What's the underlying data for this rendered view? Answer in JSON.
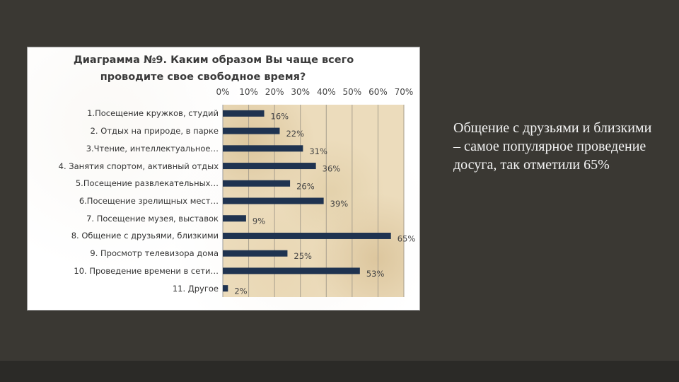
{
  "side_text": "Общение с друзьями и близкими – самое популярное проведение досуга, так отметили 65%",
  "chart_data": {
    "type": "bar",
    "orientation": "horizontal",
    "title_line1": "Диаграмма №9. Каким образом Вы чаще всего",
    "title_line2": "проводите свое свободное время?",
    "categories": [
      "1.Посещение кружков, студий",
      "2. Отдых на природе, в парке",
      "3.Чтение, интеллектуальное…",
      "4. Занятия спортом, активный отдых",
      "5.Посещение развлекательных…",
      "6.Посещение зрелищных мест…",
      "7. Посещение музея, выставок",
      "8. Общение с друзьями, близкими",
      "9. Просмотр телевизора дома",
      "10. Проведение времени в сети…",
      "11. Другое"
    ],
    "values": [
      16,
      22,
      31,
      36,
      26,
      39,
      9,
      65,
      25,
      53,
      2
    ],
    "value_labels": [
      "16%",
      "22%",
      "31%",
      "36%",
      "26%",
      "39%",
      "9%",
      "65%",
      "25%",
      "53%",
      "2%"
    ],
    "x_ticks": [
      "0%",
      "10%",
      "20%",
      "30%",
      "40%",
      "50%",
      "60%",
      "70%"
    ],
    "xlim": [
      0,
      70
    ],
    "x_axis_position": "top",
    "grid": true,
    "bar_color": "#1f3350"
  }
}
